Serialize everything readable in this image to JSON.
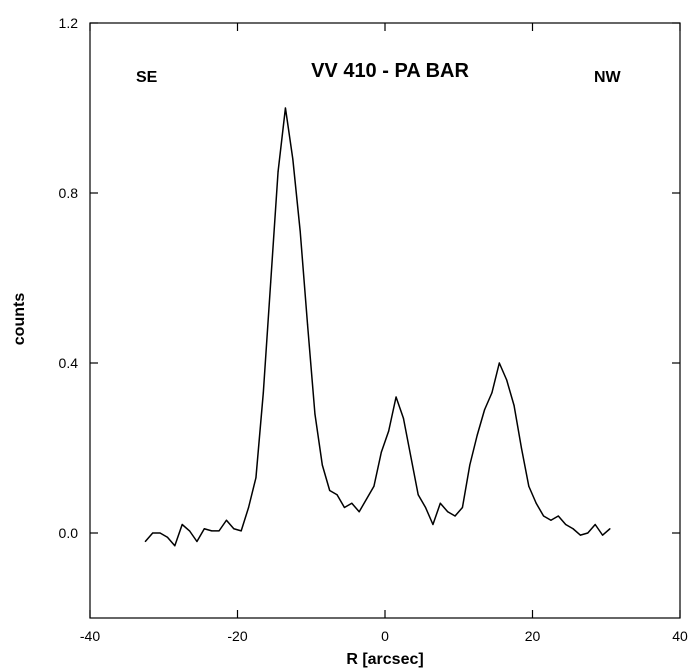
{
  "chart_data": {
    "type": "line",
    "title": "VV 410 - PA BAR",
    "xlabel": "R [arcsec]",
    "ylabel": "counts",
    "xlim": [
      -40,
      40
    ],
    "ylim": [
      -0.2,
      1.2
    ],
    "xticks": [
      -40,
      -20,
      0,
      20,
      40
    ],
    "xtick_labels": [
      "-40",
      "-20",
      "0",
      "20",
      "40"
    ],
    "yticks": [
      0.0,
      0.4,
      0.8,
      1.2
    ],
    "ytick_labels": [
      "0.0",
      "0.4",
      "0.8",
      "1.2"
    ],
    "grid": false,
    "annotations": [
      {
        "text": "SE",
        "position": "top-left"
      },
      {
        "text": "NW",
        "position": "top-right"
      }
    ],
    "series": [
      {
        "color": "#000000",
        "x": [
          -32.5,
          -31.5,
          -30.5,
          -29.5,
          -28.5,
          -27.5,
          -26.5,
          -25.5,
          -24.5,
          -23.5,
          -22.5,
          -21.5,
          -20.5,
          -19.5,
          -18.5,
          -17.5,
          -16.5,
          -15.5,
          -14.5,
          -13.5,
          -12.5,
          -11.5,
          -10.5,
          -9.5,
          -8.5,
          -7.5,
          -6.5,
          -5.5,
          -4.5,
          -3.5,
          -2.5,
          -1.5,
          -0.5,
          0.5,
          1.5,
          2.5,
          3.5,
          4.5,
          5.5,
          6.5,
          7.5,
          8.5,
          9.5,
          10.5,
          11.5,
          12.5,
          13.5,
          14.5,
          15.5,
          16.5,
          17.5,
          18.5,
          19.5,
          20.5,
          21.5,
          22.5,
          23.5,
          24.5,
          25.5,
          26.5,
          27.5,
          28.5,
          29.5,
          30.5
        ],
        "y": [
          -0.02,
          0.0,
          0.0,
          -0.01,
          -0.03,
          0.02,
          0.005,
          -0.02,
          0.01,
          0.005,
          0.005,
          0.03,
          0.01,
          0.005,
          0.06,
          0.13,
          0.33,
          0.59,
          0.85,
          1.0,
          0.88,
          0.71,
          0.49,
          0.28,
          0.16,
          0.1,
          0.09,
          0.06,
          0.07,
          0.05,
          0.08,
          0.11,
          0.19,
          0.24,
          0.32,
          0.27,
          0.18,
          0.09,
          0.06,
          0.02,
          0.07,
          0.05,
          0.04,
          0.06,
          0.16,
          0.23,
          0.29,
          0.33,
          0.4,
          0.36,
          0.3,
          0.2,
          0.11,
          0.07,
          0.04,
          0.03,
          0.04,
          0.02,
          0.01,
          -0.005,
          0.0,
          0.02,
          -0.005,
          0.01
        ]
      }
    ]
  }
}
